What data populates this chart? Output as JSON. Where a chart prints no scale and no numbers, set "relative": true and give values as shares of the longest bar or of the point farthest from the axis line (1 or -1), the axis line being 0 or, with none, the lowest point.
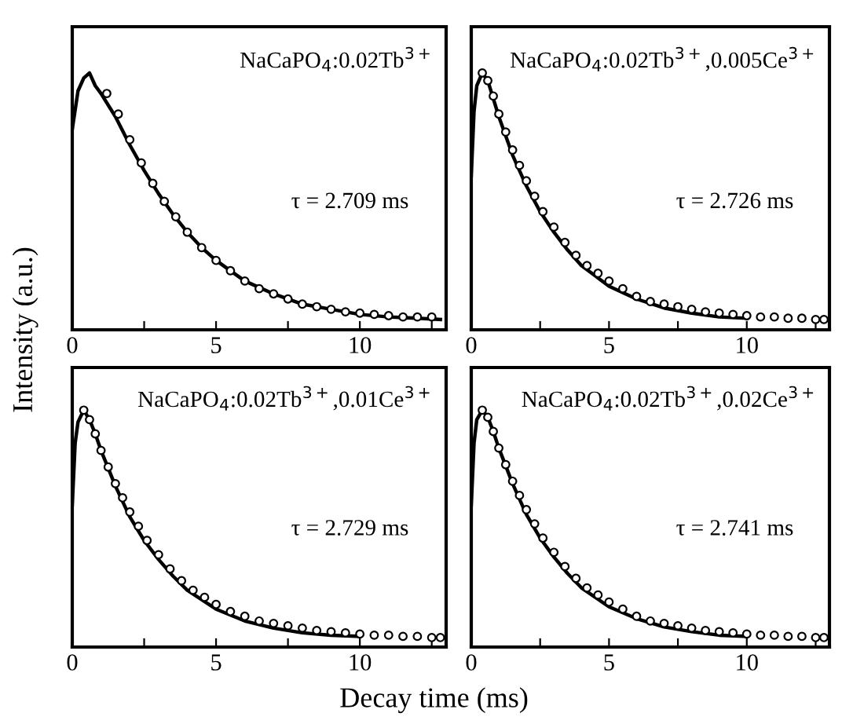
{
  "chart_data": [
    {
      "type": "line",
      "relative": true,
      "ylabel": "Intensity (a.u.)",
      "xlim": [
        0,
        13
      ],
      "xticks": [
        0,
        {
          "value": 2.5,
          "label": null
        },
        5,
        {
          "value": 7.5,
          "label": null
        },
        10,
        {
          "value": 12.5,
          "label": null
        }
      ],
      "tick_labels": "x",
      "annotations": [
        "NaCaPO$_{4}$:0.02Tb$^{3+}$",
        "τ = 2.709 ms"
      ],
      "series": [
        {
          "color": "#000000",
          "marker": "none",
          "x": [
            0,
            0.2,
            0.4,
            0.6,
            0.8,
            1,
            1.5,
            2,
            2.5,
            3,
            3.5,
            4,
            4.5,
            5,
            6,
            7,
            8,
            9,
            10,
            11,
            12,
            12.8
          ],
          "values": [
            0.78,
            0.93,
            0.98,
            1.0,
            0.95,
            0.92,
            0.83,
            0.72,
            0.62,
            0.53,
            0.45,
            0.38,
            0.32,
            0.27,
            0.19,
            0.14,
            0.1,
            0.08,
            0.06,
            0.05,
            0.045,
            0.04
          ]
        },
        {
          "color": "#000000",
          "marker": "circle",
          "type": "scatter",
          "x": [
            1.2,
            1.6,
            2,
            2.4,
            2.8,
            3.2,
            3.6,
            4,
            4.5,
            5,
            5.5,
            6,
            6.5,
            7,
            7.5,
            8,
            8.5,
            9,
            9.5,
            10,
            10.5,
            11,
            11.5,
            12,
            12.5
          ],
          "values": [
            0.92,
            0.84,
            0.74,
            0.65,
            0.57,
            0.5,
            0.44,
            0.38,
            0.32,
            0.27,
            0.23,
            0.19,
            0.16,
            0.14,
            0.12,
            0.1,
            0.09,
            0.08,
            0.07,
            0.065,
            0.06,
            0.055,
            0.05,
            0.05,
            0.05
          ]
        }
      ]
    },
    {
      "type": "line",
      "relative": true,
      "xlim": [
        0,
        13
      ],
      "xticks": [
        0,
        {
          "value": 2.5,
          "label": null
        },
        5,
        {
          "value": 7.5,
          "label": null
        },
        10,
        {
          "value": 12.5,
          "label": null
        }
      ],
      "tick_labels": "x",
      "annotations": [
        "NaCaPO$_{4}$:0.02Tb$^{3+}$,0.005Ce$^{3+}$",
        "τ = 2.726 ms"
      ],
      "series": [
        {
          "color": "#000000",
          "marker": "none",
          "x": [
            0,
            0.1,
            0.2,
            0.4,
            0.6,
            0.8,
            1,
            1.5,
            2,
            2.5,
            3,
            3.5,
            4,
            4.5,
            5,
            6,
            7,
            8,
            9,
            10
          ],
          "values": [
            0.6,
            0.85,
            0.95,
            1.0,
            0.97,
            0.9,
            0.83,
            0.68,
            0.56,
            0.46,
            0.38,
            0.31,
            0.25,
            0.21,
            0.17,
            0.12,
            0.085,
            0.065,
            0.05,
            0.045
          ]
        },
        {
          "color": "#000000",
          "marker": "circle",
          "type": "scatter",
          "x": [
            0.4,
            0.6,
            0.8,
            1,
            1.25,
            1.5,
            1.75,
            2,
            2.3,
            2.6,
            3,
            3.4,
            3.8,
            4.2,
            4.6,
            5,
            5.5,
            6,
            6.5,
            7,
            7.5,
            8,
            8.5,
            9,
            9.5,
            10,
            10.5,
            11,
            11.5,
            12,
            12.5,
            12.8
          ],
          "values": [
            1.0,
            0.97,
            0.91,
            0.84,
            0.77,
            0.7,
            0.64,
            0.58,
            0.52,
            0.46,
            0.4,
            0.34,
            0.29,
            0.25,
            0.22,
            0.19,
            0.16,
            0.13,
            0.11,
            0.1,
            0.09,
            0.08,
            0.07,
            0.065,
            0.06,
            0.055,
            0.05,
            0.05,
            0.045,
            0.045,
            0.04,
            0.04
          ]
        }
      ]
    },
    {
      "type": "line",
      "relative": true,
      "xlabel": "Decay time (ms)",
      "xlim": [
        0,
        13
      ],
      "xticks": [
        0,
        {
          "value": 2.5,
          "label": null
        },
        5,
        {
          "value": 7.5,
          "label": null
        },
        10,
        {
          "value": 12.5,
          "label": null
        }
      ],
      "tick_labels": "x",
      "annotations": [
        "NaCaPO$_{4}$:0.02Tb$^{3+}$,0.01Ce$^{3+}$",
        "τ = 2.729 ms"
      ],
      "series": [
        {
          "color": "#000000",
          "marker": "none",
          "x": [
            0,
            0.1,
            0.2,
            0.4,
            0.6,
            0.8,
            1,
            1.5,
            2,
            2.5,
            3,
            3.5,
            4,
            4.5,
            5,
            6,
            7,
            8,
            9,
            10
          ],
          "values": [
            0.6,
            0.86,
            0.95,
            1.0,
            0.96,
            0.9,
            0.83,
            0.68,
            0.55,
            0.45,
            0.37,
            0.3,
            0.24,
            0.2,
            0.16,
            0.11,
            0.08,
            0.06,
            0.05,
            0.045
          ]
        },
        {
          "color": "#000000",
          "marker": "circle",
          "type": "scatter",
          "x": [
            0.4,
            0.6,
            0.8,
            1,
            1.25,
            1.5,
            1.75,
            2,
            2.3,
            2.6,
            3,
            3.4,
            3.8,
            4.2,
            4.6,
            5,
            5.5,
            6,
            6.5,
            7,
            7.5,
            8,
            8.5,
            9,
            9.5,
            10,
            10.5,
            11,
            11.5,
            12,
            12.5,
            12.8
          ],
          "values": [
            1.0,
            0.96,
            0.9,
            0.83,
            0.76,
            0.69,
            0.63,
            0.57,
            0.51,
            0.45,
            0.39,
            0.33,
            0.28,
            0.24,
            0.21,
            0.18,
            0.15,
            0.13,
            0.11,
            0.1,
            0.09,
            0.08,
            0.07,
            0.065,
            0.06,
            0.055,
            0.05,
            0.05,
            0.045,
            0.045,
            0.04,
            0.04
          ]
        }
      ]
    },
    {
      "type": "line",
      "relative": true,
      "xlim": [
        0,
        13
      ],
      "xticks": [
        0,
        {
          "value": 2.5,
          "label": null
        },
        5,
        {
          "value": 7.5,
          "label": null
        },
        10,
        {
          "value": 12.5,
          "label": null
        }
      ],
      "tick_labels": "x",
      "annotations": [
        "NaCaPO$_{4}$:0.02Tb$^{3+}$,0.02Ce$^{3+}$",
        "τ = 2.741 ms"
      ],
      "series": [
        {
          "color": "#000000",
          "marker": "none",
          "x": [
            0,
            0.1,
            0.2,
            0.4,
            0.6,
            0.8,
            1,
            1.5,
            2,
            2.5,
            3,
            3.5,
            4,
            4.5,
            5,
            6,
            7,
            8,
            9,
            10
          ],
          "values": [
            0.6,
            0.86,
            0.96,
            1.0,
            0.97,
            0.91,
            0.84,
            0.69,
            0.56,
            0.46,
            0.38,
            0.31,
            0.25,
            0.21,
            0.17,
            0.12,
            0.085,
            0.065,
            0.05,
            0.045
          ]
        },
        {
          "color": "#000000",
          "marker": "circle",
          "type": "scatter",
          "x": [
            0.4,
            0.6,
            0.8,
            1,
            1.25,
            1.5,
            1.75,
            2,
            2.3,
            2.6,
            3,
            3.4,
            3.8,
            4.2,
            4.6,
            5,
            5.5,
            6,
            6.5,
            7,
            7.5,
            8,
            8.5,
            9,
            9.5,
            10,
            10.5,
            11,
            11.5,
            12,
            12.5,
            12.8
          ],
          "values": [
            1.0,
            0.97,
            0.91,
            0.84,
            0.77,
            0.7,
            0.64,
            0.58,
            0.52,
            0.46,
            0.4,
            0.34,
            0.29,
            0.25,
            0.22,
            0.19,
            0.16,
            0.13,
            0.11,
            0.1,
            0.09,
            0.08,
            0.07,
            0.065,
            0.06,
            0.055,
            0.05,
            0.05,
            0.045,
            0.045,
            0.04,
            0.04
          ]
        }
      ]
    }
  ]
}
